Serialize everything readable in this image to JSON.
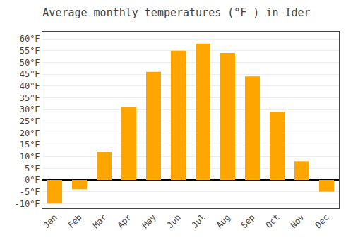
{
  "chart_data": {
    "type": "bar",
    "title": "Average monthly temperatures (°F ) in Ider",
    "categories": [
      "Jan",
      "Feb",
      "Mar",
      "Apr",
      "May",
      "Jun",
      "Jul",
      "Aug",
      "Sep",
      "Oct",
      "Nov",
      "Dec"
    ],
    "values": [
      -10,
      -4,
      12,
      31,
      46,
      55,
      58,
      54,
      44,
      29,
      8,
      -5
    ],
    "color": "#FFA500",
    "ylim": [
      -12,
      63
    ],
    "yticks": [
      {
        "value": -10,
        "label": "-10°F"
      },
      {
        "value": -5,
        "label": "-5°F"
      },
      {
        "value": 0,
        "label": "0°F"
      },
      {
        "value": 5,
        "label": "5°F"
      },
      {
        "value": 10,
        "label": "10°F"
      },
      {
        "value": 15,
        "label": "15°F"
      },
      {
        "value": 20,
        "label": "20°F"
      },
      {
        "value": 25,
        "label": "25°F"
      },
      {
        "value": 30,
        "label": "30°F"
      },
      {
        "value": 35,
        "label": "35°F"
      },
      {
        "value": 40,
        "label": "40°F"
      },
      {
        "value": 45,
        "label": "45°F"
      },
      {
        "value": 50,
        "label": "50°F"
      },
      {
        "value": 55,
        "label": "55°F"
      },
      {
        "value": 60,
        "label": "60°F"
      }
    ],
    "grid": true
  }
}
